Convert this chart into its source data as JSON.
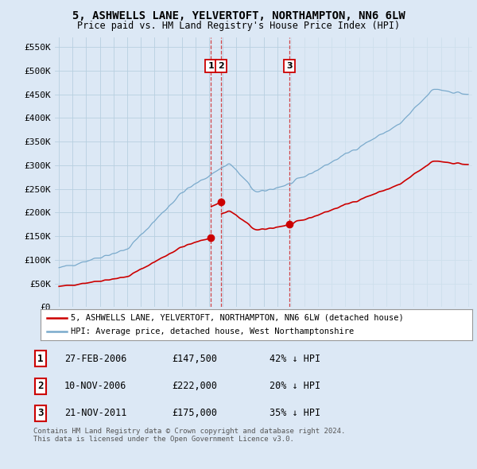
{
  "title": "5, ASHWELLS LANE, YELVERTOFT, NORTHAMPTON, NN6 6LW",
  "subtitle": "Price paid vs. HM Land Registry's House Price Index (HPI)",
  "ylabel_vals": [
    "£0",
    "£50K",
    "£100K",
    "£150K",
    "£200K",
    "£250K",
    "£300K",
    "£350K",
    "£400K",
    "£450K",
    "£500K",
    "£550K"
  ],
  "yticks": [
    0,
    50000,
    100000,
    150000,
    200000,
    250000,
    300000,
    350000,
    400000,
    450000,
    500000,
    550000
  ],
  "ylim_top": 570000,
  "xlim_start": 1994.7,
  "xlim_end": 2025.3,
  "transactions": [
    {
      "label": "1",
      "date_x": 2006.15,
      "price": 147500
    },
    {
      "label": "2",
      "date_x": 2006.87,
      "price": 222000
    },
    {
      "label": "3",
      "date_x": 2011.9,
      "price": 175000
    }
  ],
  "legend_label_red": "5, ASHWELLS LANE, YELVERTOFT, NORTHAMPTON, NN6 6LW (detached house)",
  "legend_label_blue": "HPI: Average price, detached house, West Northamptonshire",
  "table_rows": [
    {
      "num": "1",
      "date": "27-FEB-2006",
      "price": "£147,500",
      "pct": "42% ↓ HPI"
    },
    {
      "num": "2",
      "date": "10-NOV-2006",
      "price": "£222,000",
      "pct": "20% ↓ HPI"
    },
    {
      "num": "3",
      "date": "21-NOV-2011",
      "price": "£175,000",
      "pct": "35% ↓ HPI"
    }
  ],
  "footer": "Contains HM Land Registry data © Crown copyright and database right 2024.\nThis data is licensed under the Open Government Licence v3.0.",
  "bg_color": "#dce8f5",
  "plot_bg_color": "#dce8f5",
  "grid_color": "#b8cfe0",
  "red_color": "#cc0000",
  "blue_color": "#7aaacc",
  "shade_color": "#e8f0f8"
}
